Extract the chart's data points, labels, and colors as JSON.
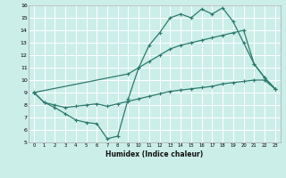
{
  "xlabel": "Humidex (Indice chaleur)",
  "bg_color": "#cceee8",
  "line_color": "#2d7a6e",
  "grid_color": "#ffffff",
  "xlim": [
    -0.5,
    23.5
  ],
  "ylim": [
    5,
    16
  ],
  "line1_x": [
    0,
    1,
    2,
    3,
    4,
    5,
    6,
    7,
    8,
    9,
    10,
    11,
    12,
    13,
    14,
    15,
    16,
    17,
    18,
    19,
    20,
    21,
    22,
    23
  ],
  "line1_y": [
    9.0,
    8.2,
    7.8,
    7.3,
    6.8,
    6.6,
    6.5,
    5.3,
    5.5,
    8.5,
    11.0,
    12.8,
    13.8,
    15.0,
    15.3,
    15.0,
    15.7,
    15.3,
    15.8,
    14.7,
    13.0,
    11.3,
    10.2,
    9.3
  ],
  "line2_x": [
    0,
    9,
    10,
    11,
    12,
    13,
    14,
    15,
    16,
    17,
    18,
    19,
    20,
    21,
    22,
    23
  ],
  "line2_y": [
    9.0,
    10.5,
    11.0,
    11.5,
    12.0,
    12.5,
    12.8,
    13.0,
    13.2,
    13.4,
    13.6,
    13.8,
    14.0,
    11.3,
    10.2,
    9.3
  ],
  "line3_x": [
    0,
    1,
    2,
    3,
    4,
    5,
    6,
    7,
    8,
    9,
    10,
    11,
    12,
    13,
    14,
    15,
    16,
    17,
    18,
    19,
    20,
    21,
    22,
    23
  ],
  "line3_y": [
    9.0,
    8.2,
    8.0,
    7.8,
    7.9,
    8.0,
    8.1,
    7.9,
    8.1,
    8.3,
    8.5,
    8.7,
    8.9,
    9.1,
    9.2,
    9.3,
    9.4,
    9.5,
    9.7,
    9.8,
    9.9,
    10.0,
    10.0,
    9.3
  ]
}
